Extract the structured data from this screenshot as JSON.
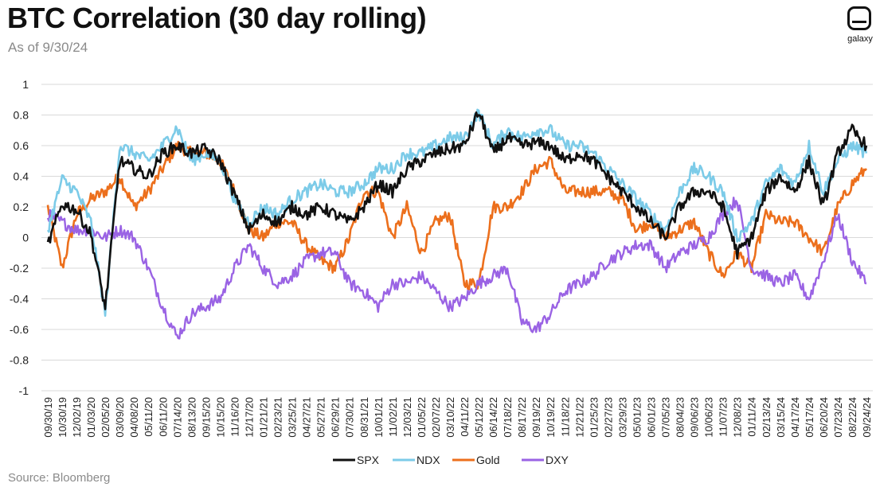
{
  "header": {
    "title": "BTC Correlation (30 day rolling)",
    "subtitle": "As of 9/30/24",
    "logo_text": "galaxy",
    "source": "Source: Bloomberg"
  },
  "colors": {
    "SPX": "#111111",
    "NDX": "#7ccbe8",
    "Gold": "#ec6f1c",
    "DXY": "#9a63e4",
    "grid": "#d9d9d9"
  },
  "chart_data": {
    "type": "line",
    "title": "BTC Correlation (30 day rolling)",
    "subtitle": "As of 9/30/24",
    "xlabel": "",
    "ylabel": "",
    "ylim": [
      -1,
      1
    ],
    "yticks": [
      "1",
      "0.8",
      "0.6",
      "0.4",
      "0.2",
      "0",
      "-0.2",
      "-0.4",
      "-0.6",
      "-0.8",
      "-1"
    ],
    "grid": true,
    "legend": "bottom-center",
    "x": [
      "09/30/19",
      "10/30/19",
      "12/02/19",
      "01/03/20",
      "02/05/20",
      "03/09/20",
      "04/08/20",
      "05/11/20",
      "06/11/20",
      "07/14/20",
      "08/13/20",
      "09/15/20",
      "10/15/20",
      "11/16/20",
      "12/17/20",
      "01/21/21",
      "02/23/21",
      "03/25/21",
      "04/27/21",
      "05/27/21",
      "06/29/21",
      "07/30/21",
      "08/31/21",
      "10/01/21",
      "11/02/21",
      "12/03/21",
      "01/05/22",
      "02/07/22",
      "03/10/22",
      "04/11/22",
      "05/12/22",
      "06/14/22",
      "07/18/22",
      "08/17/22",
      "09/19/22",
      "10/19/22",
      "11/18/22",
      "12/21/22",
      "01/25/23",
      "02/27/23",
      "03/29/23",
      "05/01/23",
      "06/01/23",
      "07/05/23",
      "08/04/23",
      "09/06/23",
      "10/06/23",
      "11/07/23",
      "12/08/23",
      "01/11/24",
      "02/13/24",
      "03/15/24",
      "04/17/24",
      "05/17/24",
      "06/20/24",
      "07/23/24",
      "08/22/24",
      "09/24/24"
    ],
    "series": [
      {
        "name": "SPX",
        "values": [
          -0.05,
          0.22,
          0.18,
          0.02,
          -0.46,
          0.5,
          0.45,
          0.4,
          0.55,
          0.6,
          0.55,
          0.58,
          0.5,
          0.28,
          0.05,
          0.15,
          0.1,
          0.2,
          0.15,
          0.2,
          0.15,
          0.1,
          0.2,
          0.35,
          0.3,
          0.45,
          0.5,
          0.55,
          0.58,
          0.6,
          0.82,
          0.55,
          0.65,
          0.6,
          0.62,
          0.6,
          0.5,
          0.55,
          0.5,
          0.4,
          0.3,
          0.2,
          0.1,
          0.0,
          0.2,
          0.3,
          0.3,
          0.2,
          -0.1,
          0.0,
          0.3,
          0.4,
          0.3,
          0.5,
          0.2,
          0.55,
          0.7,
          0.6
        ]
      },
      {
        "name": "NDX",
        "values": [
          0.05,
          0.38,
          0.3,
          0.1,
          -0.5,
          0.6,
          0.55,
          0.5,
          0.6,
          0.72,
          0.5,
          0.55,
          0.5,
          0.25,
          0.1,
          0.2,
          0.15,
          0.25,
          0.3,
          0.35,
          0.3,
          0.3,
          0.35,
          0.45,
          0.45,
          0.55,
          0.55,
          0.6,
          0.65,
          0.65,
          0.82,
          0.6,
          0.7,
          0.65,
          0.7,
          0.7,
          0.6,
          0.6,
          0.55,
          0.45,
          0.35,
          0.25,
          0.15,
          0.05,
          0.3,
          0.45,
          0.4,
          0.3,
          0.0,
          0.1,
          0.35,
          0.45,
          0.35,
          0.6,
          0.3,
          0.5,
          0.6,
          0.55
        ]
      },
      {
        "name": "Gold",
        "values": [
          0.2,
          -0.2,
          0.15,
          0.25,
          0.3,
          0.4,
          0.2,
          0.3,
          0.45,
          0.6,
          0.55,
          0.55,
          0.5,
          0.3,
          0.05,
          0.0,
          0.1,
          0.1,
          -0.05,
          -0.15,
          -0.2,
          0.0,
          0.3,
          0.3,
          0.0,
          0.2,
          -0.1,
          0.1,
          0.15,
          -0.3,
          -0.3,
          0.2,
          0.2,
          0.3,
          0.45,
          0.5,
          0.3,
          0.3,
          0.3,
          0.3,
          0.25,
          0.05,
          0.1,
          0.0,
          0.05,
          0.1,
          -0.1,
          -0.25,
          -0.1,
          -0.2,
          0.15,
          0.1,
          0.1,
          0.0,
          -0.1,
          0.2,
          0.35,
          0.45
        ]
      },
      {
        "name": "DXY",
        "values": [
          0.15,
          0.1,
          0.05,
          0.05,
          0.0,
          0.05,
          0.0,
          -0.2,
          -0.45,
          -0.65,
          -0.5,
          -0.45,
          -0.4,
          -0.2,
          -0.05,
          -0.2,
          -0.3,
          -0.25,
          -0.15,
          -0.1,
          -0.1,
          -0.3,
          -0.35,
          -0.45,
          -0.3,
          -0.3,
          -0.25,
          -0.35,
          -0.45,
          -0.4,
          -0.3,
          -0.25,
          -0.2,
          -0.55,
          -0.6,
          -0.5,
          -0.35,
          -0.3,
          -0.25,
          -0.15,
          -0.1,
          -0.05,
          -0.05,
          -0.2,
          -0.1,
          -0.05,
          0.0,
          0.15,
          0.25,
          -0.2,
          -0.25,
          -0.3,
          -0.25,
          -0.4,
          -0.15,
          0.15,
          -0.15,
          -0.3
        ]
      }
    ]
  }
}
